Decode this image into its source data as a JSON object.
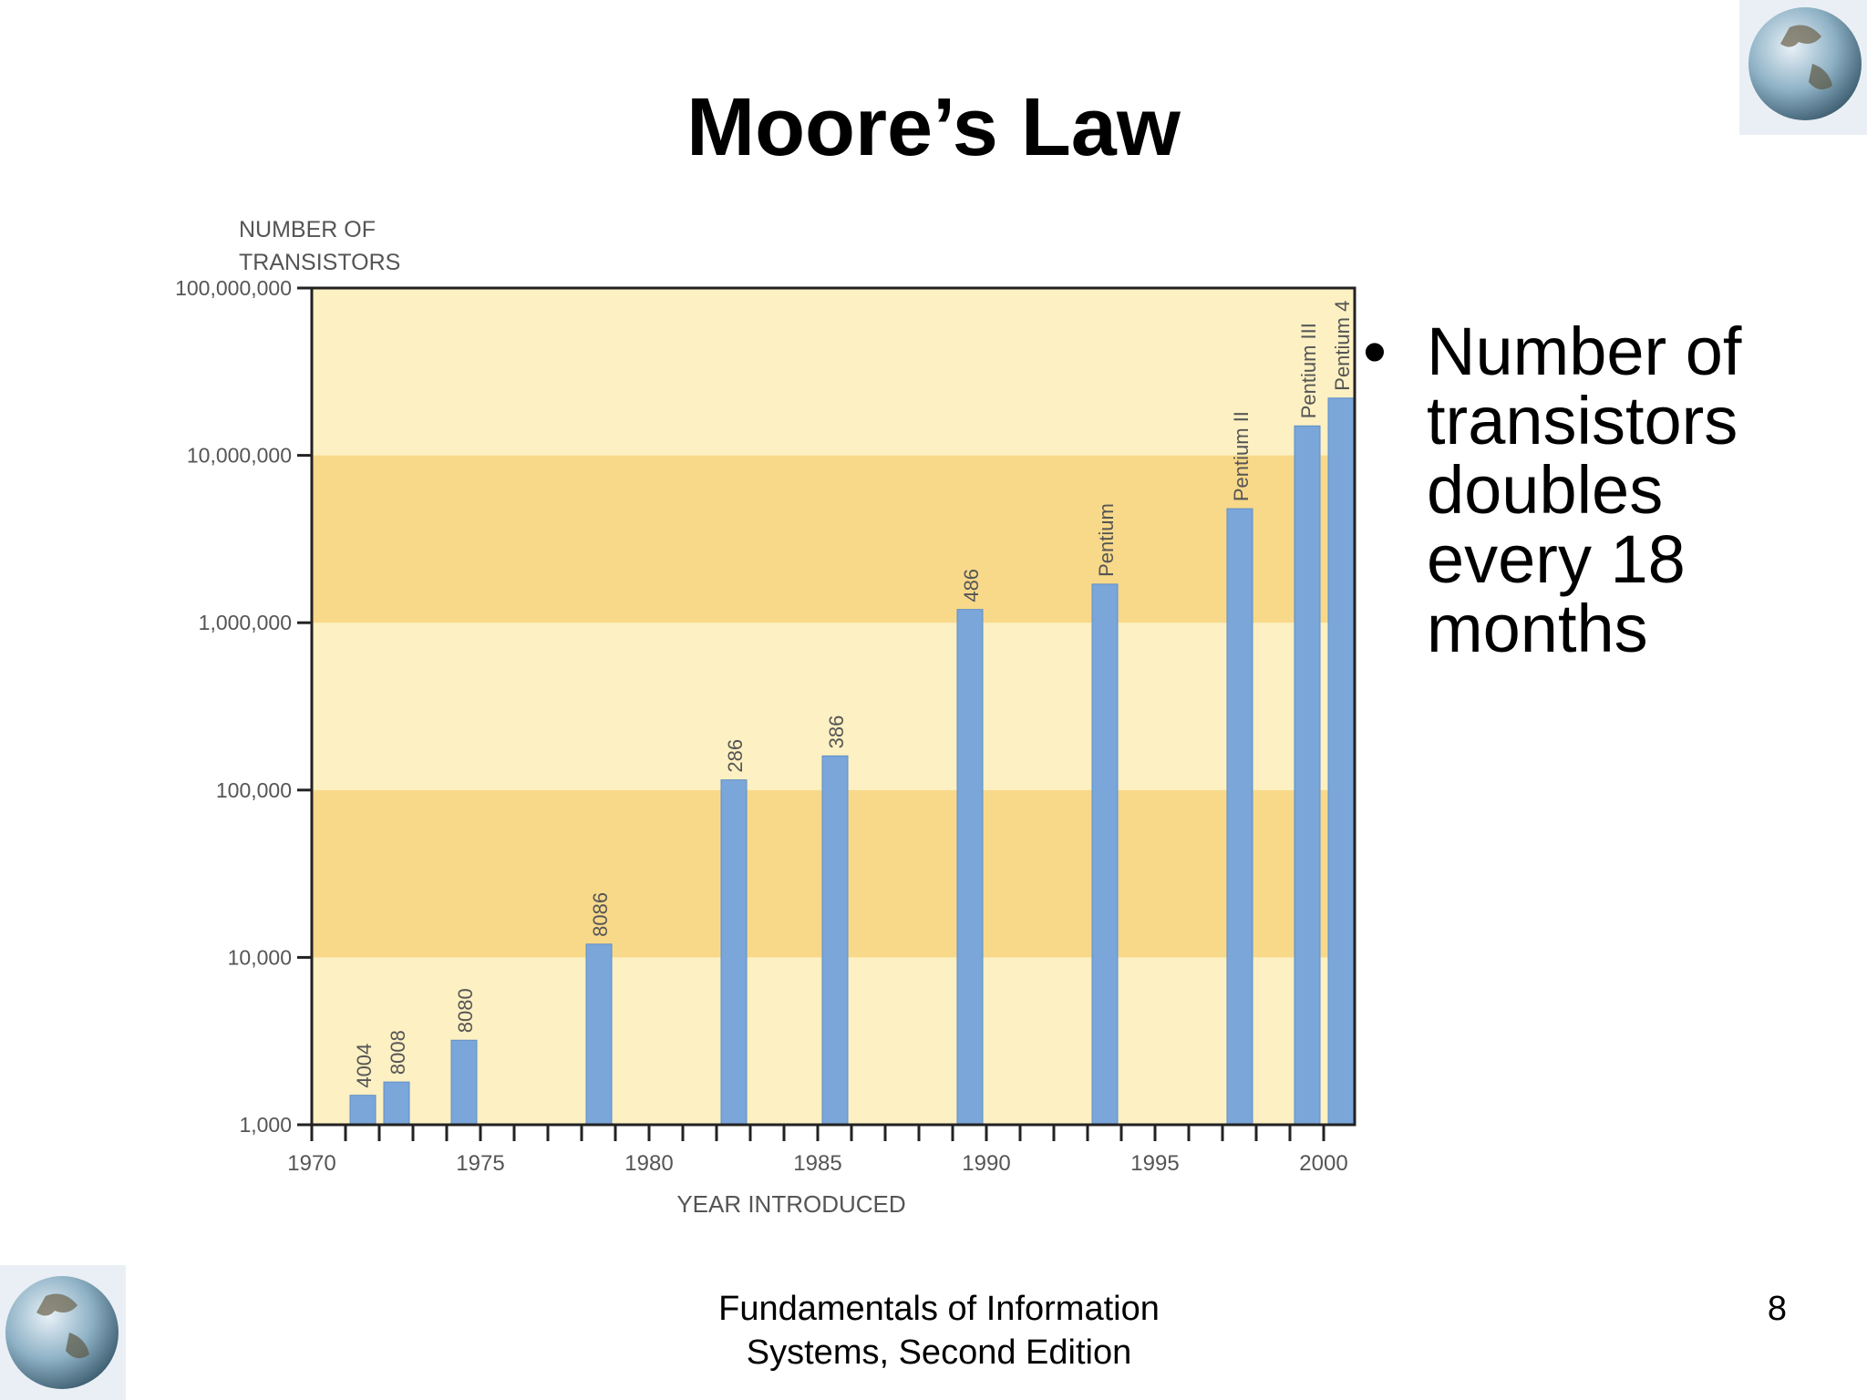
{
  "slide": {
    "title": "Moore’s Law",
    "bullet": "Number of transistors doubles every 18 months",
    "footer_line1": "Fundamentals of Information",
    "footer_line2": "Systems, Second Edition",
    "page_number": "8",
    "decor_icon": "globe-icon"
  },
  "chart_data": {
    "type": "bar",
    "title": "",
    "ylabel_lines": [
      "NUMBER OF",
      "TRANSISTORS"
    ],
    "xlabel": "YEAR INTRODUCED",
    "yscale": "log",
    "ylim": [
      1000,
      100000000
    ],
    "xlim": [
      1970,
      2001
    ],
    "yticks": [
      {
        "value": 1000,
        "label": "1,000"
      },
      {
        "value": 10000,
        "label": "10,000"
      },
      {
        "value": 100000,
        "label": "100,000"
      },
      {
        "value": 1000000,
        "label": "1,000,000"
      },
      {
        "value": 10000000,
        "label": "10,000,000"
      },
      {
        "value": 100000000,
        "label": "100,000,000"
      }
    ],
    "xticks": [
      {
        "value": 1970,
        "label": "1970"
      },
      {
        "value": 1975,
        "label": "1975"
      },
      {
        "value": 1980,
        "label": "1980"
      },
      {
        "value": 1985,
        "label": "1985"
      },
      {
        "value": 1990,
        "label": "1990"
      },
      {
        "value": 1995,
        "label": "1995"
      },
      {
        "value": 2000,
        "label": "2000"
      }
    ],
    "bars": [
      {
        "label": "4004",
        "year": 1971,
        "transistors": 1500
      },
      {
        "label": "8008",
        "year": 1972,
        "transistors": 1800
      },
      {
        "label": "8080",
        "year": 1974,
        "transistors": 3200
      },
      {
        "label": "8086",
        "year": 1978,
        "transistors": 12000
      },
      {
        "label": "286",
        "year": 1982,
        "transistors": 115000
      },
      {
        "label": "386",
        "year": 1985,
        "transistors": 160000
      },
      {
        "label": "486",
        "year": 1989,
        "transistors": 1200000
      },
      {
        "label": "Pentium",
        "year": 1993,
        "transistors": 1700000
      },
      {
        "label": "Pentium II",
        "year": 1997,
        "transistors": 4800000
      },
      {
        "label": "Pentium III",
        "year": 1999,
        "transistors": 15000000
      },
      {
        "label": "Pentium 4",
        "year": 2000,
        "transistors": 22000000
      }
    ],
    "colors": {
      "bar": "#7aa6da",
      "band_light": "#fdf0c2",
      "band_dark": "#f8d98a",
      "axis": "#222222",
      "tick_text": "#555555"
    },
    "grid": false,
    "legend": "none"
  }
}
